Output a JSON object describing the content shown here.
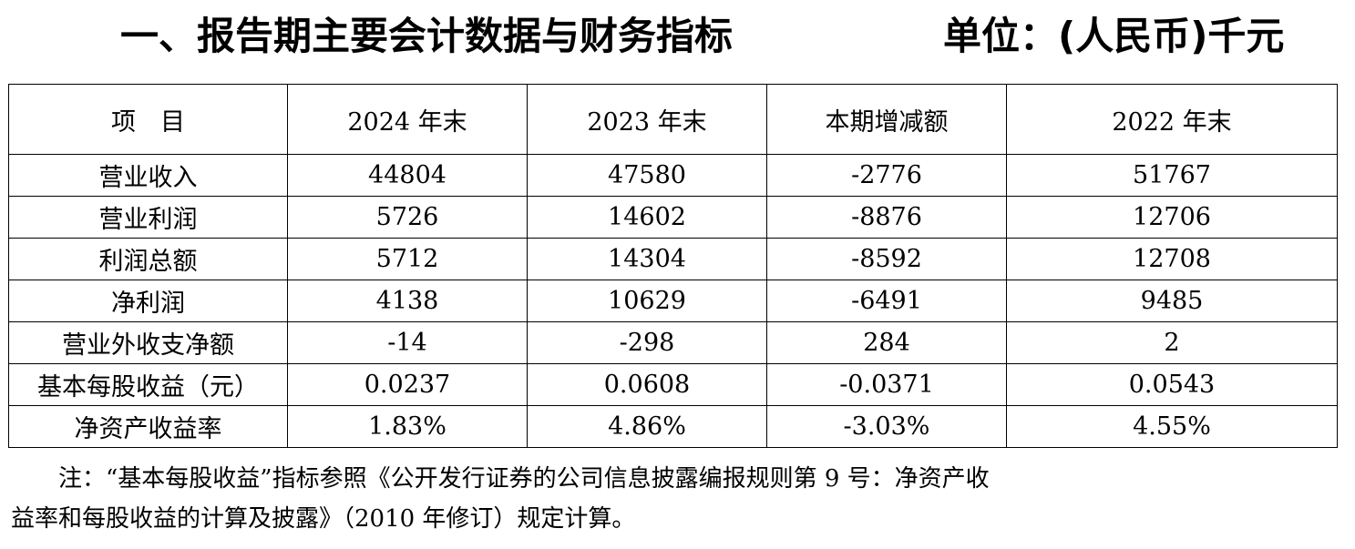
{
  "title": {
    "main": "一、报告期主要会计数据与财务指标",
    "unit": "单位：(人民币)千元"
  },
  "table": {
    "headers": [
      "项　目",
      "2024 年末",
      "2023 年末",
      "本期增减额",
      "2022 年末"
    ],
    "rows": [
      [
        "营业收入",
        "44804",
        "47580",
        "-2776",
        "51767"
      ],
      [
        "营业利润",
        "5726",
        "14602",
        "-8876",
        "12706"
      ],
      [
        "利润总额",
        "5712",
        "14304",
        "-8592",
        "12708"
      ],
      [
        "净利润",
        "4138",
        "10629",
        "-6491",
        "9485"
      ],
      [
        "营业外收支净额",
        "-14",
        "-298",
        "284",
        "2"
      ],
      [
        "基本每股收益（元）",
        "0.0237",
        "0.0608",
        "-0.0371",
        "0.0543"
      ],
      [
        "净资产收益率",
        "1.83%",
        "4.86%",
        "-3.03%",
        "4.55%"
      ]
    ]
  },
  "note": {
    "line1": "注：“基本每股收益”指标参照《公开发行证券的公司信息披露编报规则第 9 号：净资产收",
    "line2": "益率和每股收益的计算及披露》（2010 年修订）规定计算。"
  }
}
